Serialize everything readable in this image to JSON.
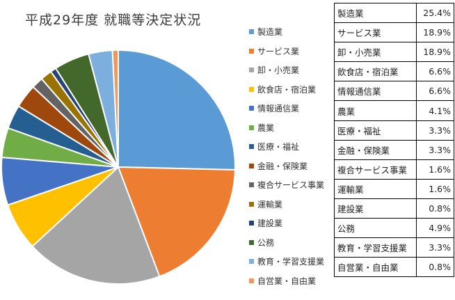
{
  "chart_data": {
    "type": "pie",
    "title": "平成29年度 就職等決定状況",
    "legend_position": "right",
    "categories": [
      "製造業",
      "サービス業",
      "卸・小売業",
      "飲食店・宿泊業",
      "情報通信業",
      "農業",
      "医療・福祉",
      "金融・保険業",
      "複合サービス事業",
      "運輸業",
      "建設業",
      "公務",
      "教育・学習支援業",
      "自営業・自由業"
    ],
    "values": [
      25.4,
      18.9,
      18.9,
      6.6,
      6.6,
      4.1,
      3.3,
      3.3,
      1.6,
      1.6,
      0.8,
      4.9,
      3.3,
      0.8
    ],
    "colors": [
      "#5b9bd5",
      "#ed7d31",
      "#a5a5a5",
      "#ffc000",
      "#4472c4",
      "#70ad47",
      "#255e91",
      "#9e480e",
      "#636363",
      "#997300",
      "#264478",
      "#43682b",
      "#7cafdd",
      "#f1975a"
    ]
  },
  "table": {
    "rows": [
      {
        "category": "製造業",
        "value": "25.4%"
      },
      {
        "category": "サービス業",
        "value": "18.9%"
      },
      {
        "category": "卸・小売業",
        "value": "18.9%"
      },
      {
        "category": "飲食店・宿泊業",
        "value": "6.6%"
      },
      {
        "category": "情報通信業",
        "value": "6.6%"
      },
      {
        "category": "農業",
        "value": "4.1%"
      },
      {
        "category": "医療・福祉",
        "value": "3.3%"
      },
      {
        "category": "金融・保険業",
        "value": "3.3%"
      },
      {
        "category": "複合サービス事業",
        "value": "1.6%"
      },
      {
        "category": "運輸業",
        "value": "1.6%"
      },
      {
        "category": "建設業",
        "value": "0.8%"
      },
      {
        "category": "公務",
        "value": "4.9%"
      },
      {
        "category": "教育・学習支援業",
        "value": "3.3%"
      },
      {
        "category": "自営業・自由業",
        "value": "0.8%"
      }
    ]
  }
}
